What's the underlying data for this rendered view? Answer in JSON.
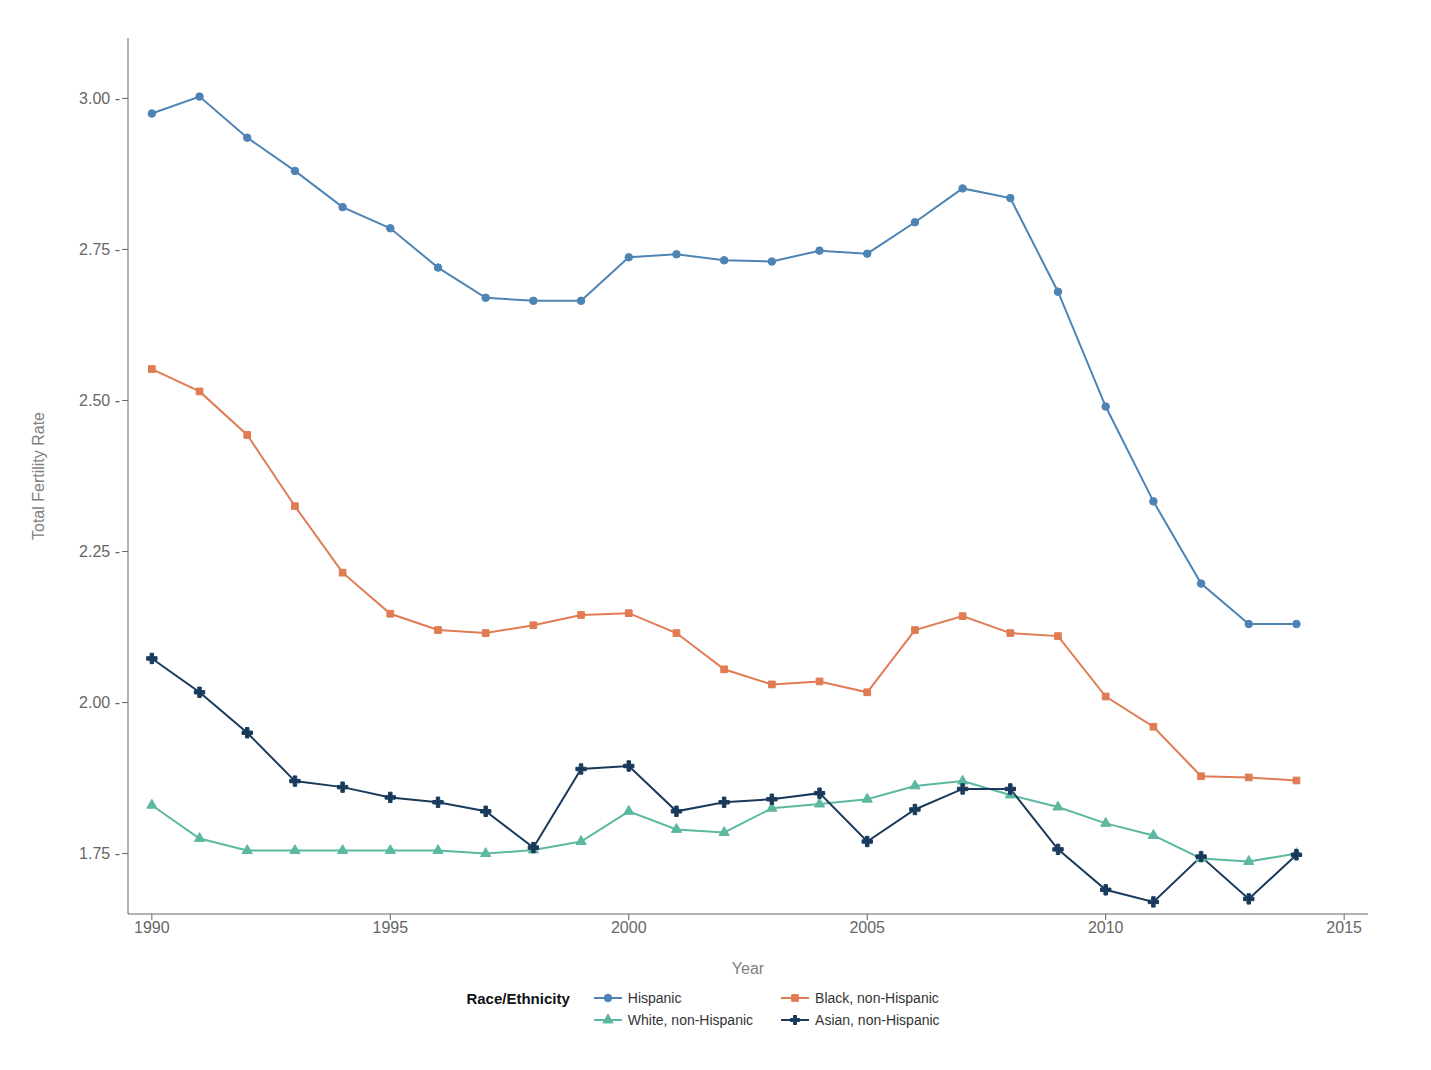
{
  "chart_data": {
    "type": "line",
    "xlabel": "Year",
    "ylabel": "Total Fertility Rate",
    "legend_title": "Race/Ethnicity",
    "legend": "bottom",
    "grid": false,
    "x": [
      1990,
      1991,
      1992,
      1993,
      1994,
      1995,
      1996,
      1997,
      1998,
      1999,
      2000,
      2001,
      2002,
      2003,
      2004,
      2005,
      2006,
      2007,
      2008,
      2009,
      2010,
      2011,
      2012,
      2013,
      2014
    ],
    "series": [
      {
        "name": "Hispanic",
        "color": "#4E84B4",
        "marker": "circle",
        "values": [
          2.975,
          3.003,
          2.935,
          2.88,
          2.82,
          2.785,
          2.72,
          2.67,
          2.665,
          2.665,
          2.737,
          2.742,
          2.732,
          2.73,
          2.748,
          2.743,
          2.795,
          2.851,
          2.835,
          2.68,
          2.49,
          2.333,
          2.197,
          2.13,
          2.13
        ]
      },
      {
        "name": "Black, non-Hispanic",
        "color": "#E07B54",
        "marker": "square",
        "values": [
          2.552,
          2.515,
          2.443,
          2.325,
          2.215,
          2.147,
          2.12,
          2.115,
          2.128,
          2.145,
          2.148,
          2.115,
          2.055,
          2.03,
          2.035,
          2.017,
          2.12,
          2.143,
          2.115,
          2.11,
          2.01,
          1.96,
          1.878,
          1.876,
          1.871
        ]
      },
      {
        "name": "White, non-Hispanic",
        "color": "#5CB8A0",
        "marker": "triangle",
        "values": [
          1.83,
          1.775,
          1.755,
          1.755,
          1.755,
          1.755,
          1.755,
          1.75,
          1.756,
          1.77,
          1.82,
          1.79,
          1.785,
          1.825,
          1.832,
          1.84,
          1.862,
          1.87,
          1.847,
          1.827,
          1.8,
          1.78,
          1.742,
          1.737,
          1.75
        ]
      },
      {
        "name": "Asian, non-Hispanic",
        "color": "#1A3A5C",
        "marker": "cross",
        "values": [
          2.073,
          2.017,
          1.95,
          1.87,
          1.86,
          1.843,
          1.835,
          1.82,
          1.76,
          1.89,
          1.895,
          1.82,
          1.835,
          1.84,
          1.85,
          1.77,
          1.823,
          1.857,
          1.857,
          1.757,
          1.69,
          1.67,
          1.745,
          1.675,
          1.748
        ]
      }
    ],
    "xlim": [
      1989.5,
      2015.5
    ],
    "xticks": [
      1990,
      1995,
      2000,
      2005,
      2010,
      2015
    ],
    "ylim": [
      1.65,
      3.1
    ],
    "yticks": [
      {
        "value": 1.75,
        "label": "1.75 -"
      },
      {
        "value": 2.0,
        "label": "2.00 -"
      },
      {
        "value": 2.25,
        "label": "2.25 -"
      },
      {
        "value": 2.5,
        "label": "2.50 -"
      },
      {
        "value": 2.75,
        "label": "2.75 -"
      },
      {
        "value": 3.0,
        "label": "3.00 -"
      }
    ]
  }
}
